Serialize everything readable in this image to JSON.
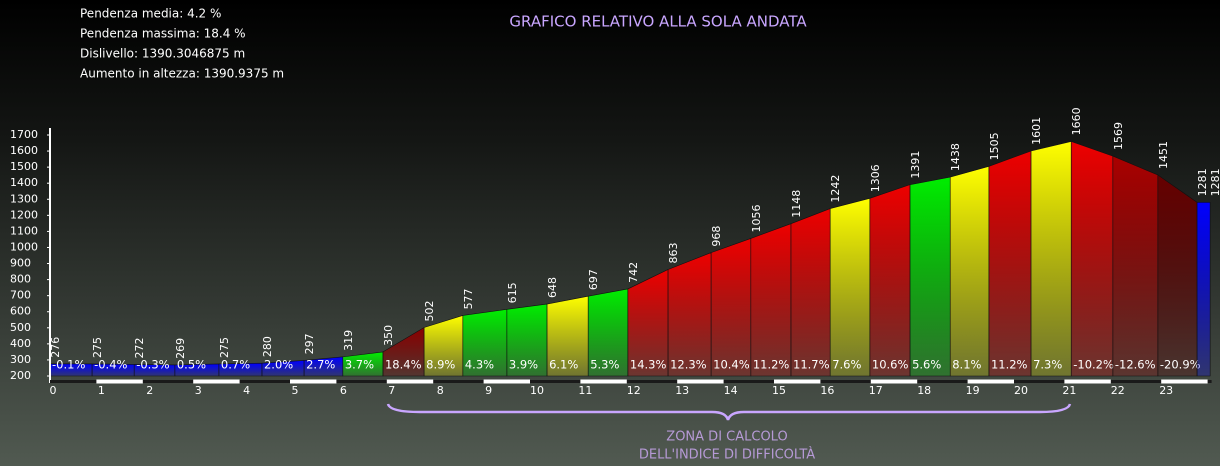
{
  "header": {
    "stats": [
      "Pendenza media: 4.2 %",
      "Pendenza massima: 18.4 %",
      "Dislivello: 1390.3046875 m",
      "Aumento in altezza: 1390.9375 m"
    ]
  },
  "chart_data": {
    "type": "elevation_profile",
    "title": "GRAFICO RELATIVO ALLA SOLA ANDATA",
    "x": [
      0,
      0.87,
      1.74,
      2.58,
      3.49,
      4.38,
      5.25,
      6.05,
      6.88,
      7.73,
      8.53,
      9.44,
      10.27,
      11.12,
      11.94,
      12.77,
      13.66,
      14.48,
      15.31,
      16.12,
      16.94,
      17.77,
      18.6,
      19.4,
      20.27,
      21.1,
      21.96,
      22.89,
      23.7,
      23.97
    ],
    "values": [
      276,
      275,
      272,
      269,
      275,
      280,
      297,
      319,
      350,
      502,
      577,
      615,
      648,
      697,
      742,
      863,
      968,
      1056,
      1148,
      1242,
      1306,
      1391,
      1438,
      1505,
      1601,
      1660,
      1569,
      1451,
      1281,
      1281
    ],
    "gradient_labels": [
      "-0.1%",
      "-0.4%",
      "-0.3%",
      "0.5%",
      "0.7%",
      "2.0%",
      "2.7%",
      "3.7%",
      "18.4%",
      "8.9%",
      "4.3%",
      "3.9%",
      "6.1%",
      "5.3%",
      "14.3%",
      "12.3%",
      "10.4%",
      "11.2%",
      "11.7%",
      "7.6%",
      "10.6%",
      "5.6%",
      "8.1%",
      "11.2%",
      "7.3%",
      "-10.2%",
      "-12.6%",
      "-20.9%",
      null
    ],
    "colors": [
      "#0000ff",
      "#0000ff",
      "#0000ff",
      "#0000ff",
      "#0000ff",
      "#0000ff",
      "#0000ff",
      "#00ee00",
      "#8b0000",
      "#ffff00",
      "#00ee00",
      "#00ee00",
      "#ffff00",
      "#00ee00",
      "#ee0000",
      "#ee0000",
      "#ee0000",
      "#ee0000",
      "#ee0000",
      "#ffff00",
      "#ee0000",
      "#00ee00",
      "#ffff00",
      "#ee0000",
      "#ffff00",
      "#ee0000",
      "#aa0000",
      "#660000",
      "#0000ff"
    ],
    "ylim": [
      200,
      1700
    ],
    "yticks": [
      200,
      300,
      400,
      500,
      600,
      700,
      800,
      900,
      1000,
      1100,
      1200,
      1300,
      1400,
      1500,
      1600,
      1700
    ],
    "xlim": [
      0,
      24
    ],
    "xticks": [
      0,
      1,
      2,
      3,
      4,
      5,
      6,
      7,
      8,
      9,
      10,
      11,
      12,
      13,
      14,
      15,
      16,
      17,
      18,
      19,
      20,
      21,
      22,
      23
    ],
    "annotation": [
      "ZONA DI CALCOLO",
      "DELL'INDICE DI DIFFICOLTÀ"
    ]
  }
}
